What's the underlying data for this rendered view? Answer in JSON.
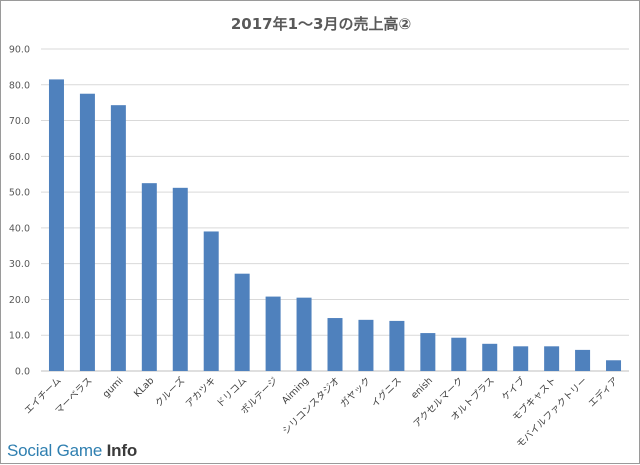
{
  "chart_data": {
    "type": "bar",
    "title": "2017年1～3月の売上高②",
    "xlabel": "",
    "ylabel": "",
    "ylim": [
      0,
      90
    ],
    "yticks": [
      "0.0",
      "10.0",
      "20.0",
      "30.0",
      "40.0",
      "50.0",
      "60.0",
      "70.0",
      "80.0",
      "90.0"
    ],
    "grid": true,
    "bar_color": "#4f81bd",
    "categories": [
      "エイチーム",
      "マーベラス",
      "gumi",
      "KLab",
      "クルーズ",
      "アカツキ",
      "ドリコム",
      "ボルテージ",
      "Aiming",
      "シリコンスタジオ",
      "ガヤック",
      "イグニス",
      "enish",
      "アクセルマーク",
      "オルトプラス",
      "ケイブ",
      "モブキャスト",
      "モバイルファクトリー",
      "エディア"
    ],
    "values": [
      81.5,
      77.5,
      74.3,
      52.5,
      51.2,
      39.0,
      27.2,
      20.8,
      20.5,
      14.8,
      14.3,
      14.0,
      10.6,
      9.3,
      7.6,
      6.9,
      6.9,
      5.9,
      3.0
    ]
  },
  "watermark": {
    "prefix": "Social Game ",
    "suffix": "Info"
  }
}
